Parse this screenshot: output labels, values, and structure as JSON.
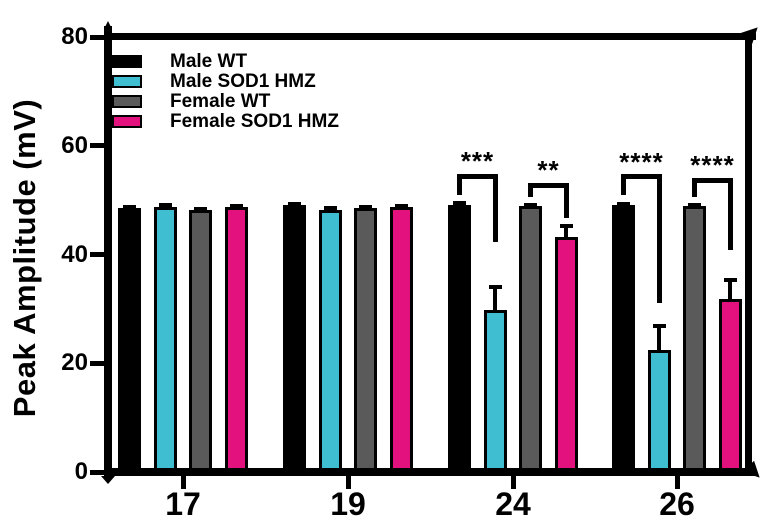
{
  "chart_data": {
    "type": "bar",
    "title": "",
    "xlabel": "",
    "ylabel": "Peak Amplitude (mV)",
    "ylim": [
      0,
      80
    ],
    "yticks": [
      0,
      20,
      40,
      60,
      80
    ],
    "grid": false,
    "legend_position": "top-left",
    "categories": [
      "17",
      "19",
      "24",
      "26"
    ],
    "series": [
      {
        "name": "Male WT",
        "color": "#000000",
        "values": [
          48.2,
          48.7,
          48.8,
          48.7
        ],
        "errors": [
          0.6,
          0.5,
          0.6,
          0.6
        ]
      },
      {
        "name": "Male SOD1 HMZ",
        "color": "#3FBDD1",
        "values": [
          48.4,
          47.9,
          29.5,
          22.1
        ],
        "errors": [
          0.7,
          0.6,
          4.6,
          4.7
        ]
      },
      {
        "name": "Female WT",
        "color": "#5A5A5A",
        "values": [
          47.8,
          48.2,
          48.5,
          48.5
        ],
        "errors": [
          0.6,
          0.6,
          0.6,
          0.6
        ]
      },
      {
        "name": "Female SOD1 HMZ",
        "color": "#E2117E",
        "values": [
          48.3,
          48.3,
          42.8,
          31.5
        ],
        "errors": [
          0.7,
          0.6,
          2.5,
          3.9
        ]
      }
    ],
    "annotations": [
      {
        "label": "***",
        "category_index": 2,
        "from_series": 0,
        "to_series": 1,
        "bracket_top_mv": 54.4,
        "left_leg_end_mv": 51.0,
        "right_leg_end_mv": 42.3
      },
      {
        "label": "**",
        "category_index": 2,
        "from_series": 2,
        "to_series": 3,
        "bracket_top_mv": 52.7,
        "left_leg_end_mv": 50.6,
        "right_leg_end_mv": 46.7
      },
      {
        "label": "****",
        "category_index": 3,
        "from_series": 0,
        "to_series": 1,
        "bracket_top_mv": 54.3,
        "left_leg_end_mv": 50.9,
        "right_leg_end_mv": 31.1
      },
      {
        "label": "****",
        "category_index": 3,
        "from_series": 2,
        "to_series": 3,
        "bracket_top_mv": 53.7,
        "left_leg_end_mv": 50.6,
        "right_leg_end_mv": 40.8
      }
    ]
  }
}
